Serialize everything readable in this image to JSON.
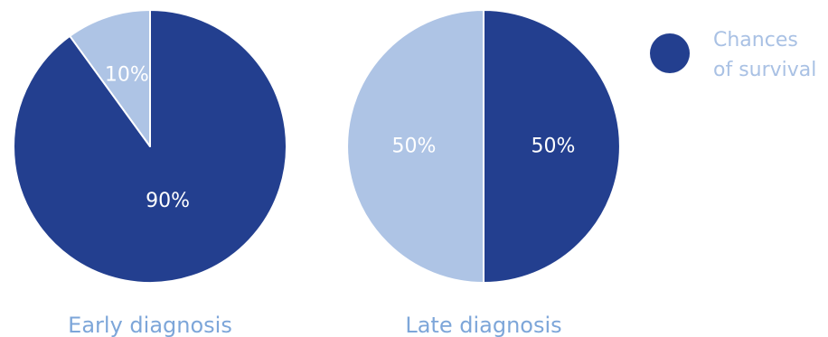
{
  "chart_data": [
    {
      "type": "pie",
      "caption": "Early diagnosis",
      "slices": [
        {
          "label": "90%",
          "value": 90,
          "color": "#233f8f",
          "label_color": "#ffffff",
          "start": "twelve-o'clock",
          "direction": "clockwise"
        },
        {
          "label": "10%",
          "value": 10,
          "color": "#aec4e5",
          "label_color": "#ffffff"
        }
      ]
    },
    {
      "type": "pie",
      "caption": "Late diagnosis",
      "slices": [
        {
          "label": "50%",
          "value": 50,
          "color": "#233f8f",
          "label_color": "#ffffff",
          "start": "twelve-o'clock",
          "direction": "clockwise"
        },
        {
          "label": "50%",
          "value": 50,
          "color": "#aec4e5",
          "label_color": "#ffffff"
        }
      ]
    }
  ],
  "legend": {
    "position": "top-right",
    "items": [
      {
        "label_line1": "Chances",
        "label_line2": "of survival",
        "color": "#233f8f"
      }
    ]
  },
  "colors": {
    "dark_blue": "#233f8f",
    "light_blue": "#aec4e5",
    "caption": "#7da6d9",
    "legend_text": "#a9c1e4",
    "background": "#ffffff",
    "separator": "#ffffff"
  }
}
